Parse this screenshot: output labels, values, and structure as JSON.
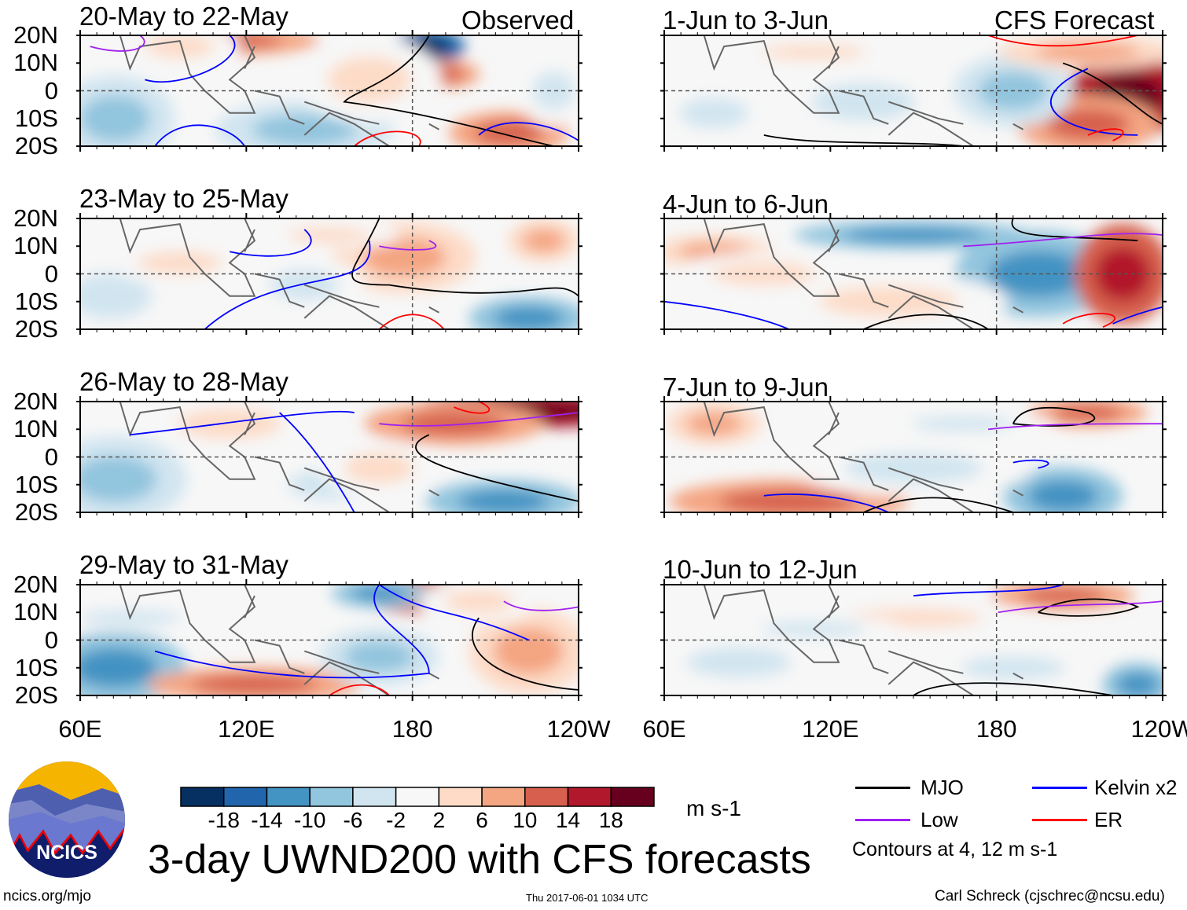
{
  "colors": {
    "levels": [
      "#053061",
      "#2166ac",
      "#4393c3",
      "#92c5de",
      "#d1e5f0",
      "#f7f7f7",
      "#fddbc7",
      "#f4a582",
      "#d6604d",
      "#b2182b",
      "#67001f"
    ],
    "mjo": "#000000",
    "kelvin": "#0000ff",
    "low": "#a020f0",
    "er": "#ff0000",
    "coast": "#666666"
  },
  "labels": {
    "observed": "Observed",
    "forecast": "CFS Forecast",
    "lat_ticks": [
      "20N",
      "10N",
      "0",
      "10S",
      "20S"
    ],
    "lon_ticks": [
      "60E",
      "120E",
      "180",
      "120W"
    ],
    "units": "m s-1",
    "title": "3-day UWND200 with CFS forecasts",
    "logo_text": "NCICS",
    "url": "ncics.org/mjo",
    "timestamp": "Thu 2017-06-01 1034 UTC",
    "author": "Carl Schreck (cjschrec@ncsu.edu)",
    "legend": {
      "mjo": "MJO",
      "kelvin": "Kelvin x2",
      "low": "Low",
      "er": "ER",
      "contours_note": "Contours at 4, 12 m s-1"
    }
  },
  "chart_data": {
    "type": "heatmap",
    "title": "3-day UWND200 with CFS forecasts",
    "variable": "200-hPa zonal wind anomaly",
    "units": "m s-1",
    "x_ticks": [
      "60E",
      "120E",
      "180",
      "120W"
    ],
    "y_ticks": [
      "20N",
      "10N",
      "0",
      "10S",
      "20S"
    ],
    "xlim": [
      "60E",
      "120W"
    ],
    "ylim": [
      "20S",
      "20N"
    ],
    "colorbar_ticks": [
      -18,
      -14,
      -10,
      -6,
      -2,
      2,
      6,
      10,
      14,
      18
    ],
    "contour_levels": [
      4,
      12
    ],
    "legend": [
      "MJO",
      "Kelvin x2",
      "Low",
      "ER"
    ],
    "panels": [
      {
        "title": "20-May to 22-May",
        "tag": "Observed"
      },
      {
        "title": "23-May to 25-May"
      },
      {
        "title": "26-May to 28-May"
      },
      {
        "title": "29-May to 31-May"
      },
      {
        "title": "1-Jun to 3-Jun",
        "tag": "CFS Forecast"
      },
      {
        "title": "4-Jun to 6-Jun"
      },
      {
        "title": "7-Jun to 9-Jun"
      },
      {
        "title": "10-Jun to 12-Jun"
      }
    ]
  }
}
